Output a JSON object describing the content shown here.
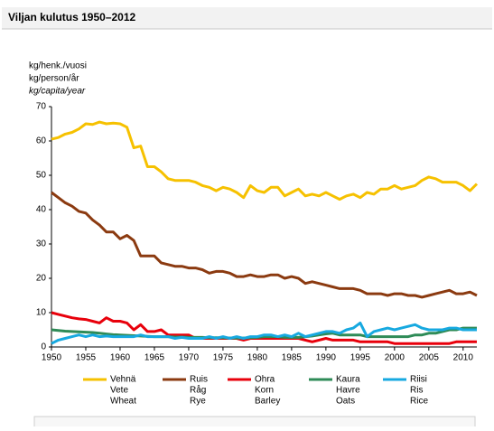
{
  "header": {
    "title": "Viljan kulutus 1950–2012"
  },
  "chart_data": {
    "type": "line",
    "y_label": [
      "kg/henk./vuosi",
      "kg/person/år",
      "kg/capita/year"
    ],
    "x": [
      1950,
      1951,
      1952,
      1953,
      1954,
      1955,
      1956,
      1957,
      1958,
      1959,
      1960,
      1961,
      1962,
      1963,
      1964,
      1965,
      1966,
      1967,
      1968,
      1969,
      1970,
      1971,
      1972,
      1973,
      1974,
      1975,
      1976,
      1977,
      1978,
      1979,
      1980,
      1981,
      1982,
      1983,
      1984,
      1985,
      1986,
      1987,
      1988,
      1989,
      1990,
      1991,
      1992,
      1993,
      1994,
      1995,
      1996,
      1997,
      1998,
      1999,
      2000,
      2001,
      2002,
      2003,
      2004,
      2005,
      2006,
      2007,
      2008,
      2009,
      2010,
      2011,
      2012
    ],
    "xlim": [
      1950,
      2012
    ],
    "xticks": [
      1950,
      1955,
      1960,
      1965,
      1970,
      1975,
      1980,
      1985,
      1990,
      1995,
      2000,
      2005,
      2010
    ],
    "ylim": [
      0,
      70
    ],
    "yticks": [
      0,
      10,
      20,
      30,
      40,
      50,
      60,
      70
    ],
    "grid": false,
    "series": [
      {
        "name": "Vehnä",
        "name_sv": "Vete",
        "name_en": "Wheat",
        "color": "#f6c100",
        "values": [
          60.5,
          61,
          62,
          62.5,
          63.5,
          65,
          64.8,
          65.5,
          65,
          65.2,
          65,
          64,
          58,
          58.5,
          52.5,
          52.5,
          51,
          49,
          48.5,
          48.5,
          48.5,
          48,
          47,
          46.5,
          45.5,
          46.5,
          46,
          45,
          43.5,
          47,
          45.5,
          45,
          46.5,
          46.5,
          44,
          45,
          46,
          44,
          44.5,
          44,
          45,
          44,
          43,
          44,
          44.5,
          43.5,
          45,
          44.5,
          46,
          46,
          47,
          46,
          46.5,
          47,
          48.5,
          49.5,
          49,
          48,
          48,
          48,
          47,
          45.5,
          47.5
        ]
      },
      {
        "name": "Ruis",
        "name_sv": "Råg",
        "name_en": "Rye",
        "color": "#8b3a10",
        "values": [
          45,
          43.5,
          42,
          41,
          39.5,
          39,
          37,
          35.5,
          33.5,
          33.5,
          31.5,
          32.5,
          31,
          26.5,
          26.5,
          26.5,
          24.5,
          24,
          23.5,
          23.5,
          23,
          23,
          22.5,
          21.5,
          22,
          22,
          21.5,
          20.5,
          20.5,
          21,
          20.5,
          20.5,
          21,
          21,
          20,
          20.5,
          20,
          18.5,
          19,
          18.5,
          18,
          17.5,
          17,
          17,
          17,
          16.5,
          15.5,
          15.5,
          15.5,
          15,
          15.5,
          15.5,
          15,
          15,
          14.5,
          15,
          15.5,
          16,
          16.5,
          15.5,
          15.5,
          16,
          15
        ]
      },
      {
        "name": "Ohra",
        "name_sv": "Korn",
        "name_en": "Barley",
        "color": "#e8000b",
        "values": [
          10,
          9.5,
          9,
          8.5,
          8.2,
          8,
          7.5,
          7,
          8.5,
          7.5,
          7.5,
          7,
          5,
          6.5,
          4.5,
          4.5,
          5,
          3.5,
          3.5,
          3.5,
          3.5,
          2.5,
          2.5,
          2.5,
          2.5,
          2.5,
          2.5,
          2.5,
          2,
          2.5,
          2.5,
          2.5,
          2.5,
          2.5,
          2.5,
          2.5,
          2.5,
          2,
          1.5,
          2,
          2.5,
          2,
          2,
          2,
          2,
          1.5,
          1.5,
          1.5,
          1.5,
          1.5,
          1,
          1,
          1,
          1,
          1,
          1,
          1,
          1,
          1,
          1.5,
          1.5,
          1.5,
          1.5
        ]
      },
      {
        "name": "Kaura",
        "name_sv": "Havre",
        "name_en": "Oats",
        "color": "#2e8b57",
        "values": [
          5,
          4.8,
          4.6,
          4.5,
          4.4,
          4.3,
          4.2,
          4,
          3.8,
          3.6,
          3.5,
          3.4,
          3.3,
          3.2,
          3.1,
          3,
          3,
          3,
          2.9,
          2.9,
          2.8,
          2.8,
          2.8,
          2.7,
          2.7,
          2.7,
          2.6,
          2.6,
          2.6,
          2.7,
          2.8,
          3,
          3,
          3,
          2.8,
          2.8,
          2.8,
          3,
          3.2,
          3.5,
          3.8,
          4,
          3.5,
          3.5,
          3.5,
          3.5,
          3,
          3,
          3,
          3,
          3,
          3,
          3,
          3.5,
          3.5,
          4,
          4,
          4.5,
          5,
          5,
          5.5,
          5.5,
          5.5
        ]
      },
      {
        "name": "Riisi",
        "name_sv": "Ris",
        "name_en": "Rice",
        "color": "#17a9e0",
        "values": [
          1,
          2,
          2.5,
          3,
          3.5,
          3,
          3.5,
          3,
          3.2,
          3,
          3,
          3,
          3,
          3.5,
          3,
          3,
          3,
          3,
          2.5,
          2.8,
          2.5,
          2.5,
          2.5,
          3,
          2.5,
          3,
          2.5,
          3,
          2.5,
          3,
          3,
          3.5,
          3.5,
          3,
          3.5,
          3,
          4,
          3,
          3.5,
          4,
          4.5,
          4.5,
          4,
          5,
          5.5,
          7,
          3,
          4.5,
          5,
          5.5,
          5,
          5.5,
          6,
          6.5,
          5.5,
          5,
          5,
          5,
          5.5,
          5.5,
          5,
          5,
          5
        ]
      }
    ]
  }
}
